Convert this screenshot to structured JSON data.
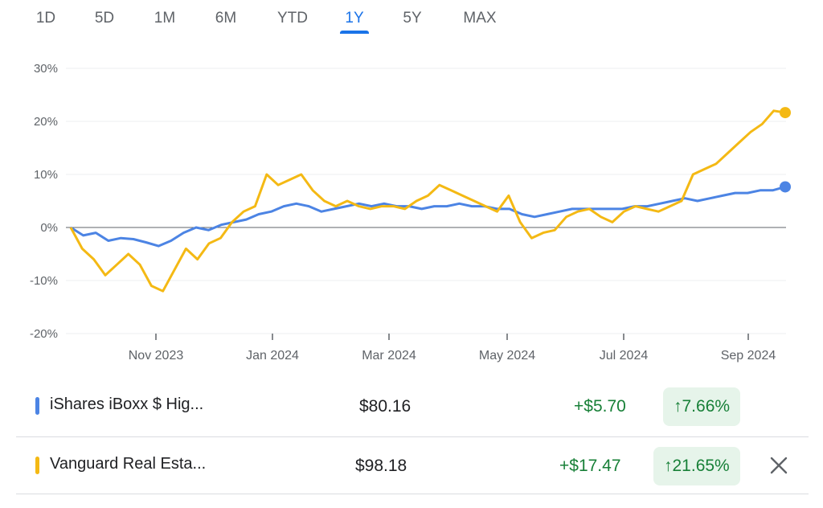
{
  "tabs": [
    "1D",
    "5D",
    "1M",
    "6M",
    "YTD",
    "1Y",
    "5Y",
    "MAX"
  ],
  "active_tab": "1Y",
  "colors": {
    "accent": "#1a73e8",
    "series1": "#4c84e4",
    "series2": "#f4b914",
    "positive": "#188038",
    "positive_bg": "#e6f4ea"
  },
  "chart_data": {
    "type": "line",
    "x_ticks": [
      "Nov 2023",
      "Jan 2024",
      "Mar 2024",
      "May 2024",
      "Jul 2024",
      "Sep 2024"
    ],
    "y_ticks": [
      "30%",
      "20%",
      "10%",
      "0%",
      "-10%",
      "-20%"
    ],
    "ylim": [
      -20,
      30
    ],
    "grid": true,
    "series": [
      {
        "name": "iShares iBoxx $ Hig...",
        "values": [
          0,
          -1.5,
          -1,
          -2.5,
          -2,
          -2.2,
          -2.8,
          -3.5,
          -2.5,
          -1,
          0,
          -0.5,
          0.5,
          1,
          1.5,
          2.5,
          3,
          4,
          4.5,
          4,
          3,
          3.5,
          4,
          4.5,
          4,
          4.5,
          4,
          4,
          3.5,
          4,
          4,
          4.5,
          4,
          4,
          3.5,
          3.5,
          2.5,
          2,
          2.5,
          3,
          3.5,
          3.5,
          3.5,
          3.5,
          3.5,
          4,
          4,
          4.5,
          5,
          5.5,
          5,
          5.5,
          6,
          6.5,
          6.5,
          7,
          7,
          7.66
        ]
      },
      {
        "name": "Vanguard Real Esta...",
        "values": [
          0,
          -4,
          -6,
          -9,
          -7,
          -5,
          -7,
          -11,
          -12,
          -8,
          -4,
          -6,
          -3,
          -2,
          1,
          3,
          4,
          10,
          8,
          9,
          10,
          7,
          5,
          4,
          5,
          4,
          3.5,
          4,
          4,
          3.5,
          5,
          6,
          8,
          7,
          6,
          5,
          4,
          3,
          6,
          1,
          -2,
          -1,
          -0.5,
          2,
          3,
          3.5,
          2,
          1,
          3,
          4,
          3.5,
          3,
          4,
          5,
          10,
          11,
          12,
          14,
          16,
          18,
          19.5,
          22,
          21.65
        ]
      }
    ]
  },
  "rows": [
    {
      "name": "iShares iBoxx $ Hig...",
      "price": "$80.16",
      "change": "+$5.70",
      "pct": "7.66%"
    },
    {
      "name": "Vanguard Real Esta...",
      "price": "$98.18",
      "change": "+$17.47",
      "pct": "21.65%"
    }
  ]
}
